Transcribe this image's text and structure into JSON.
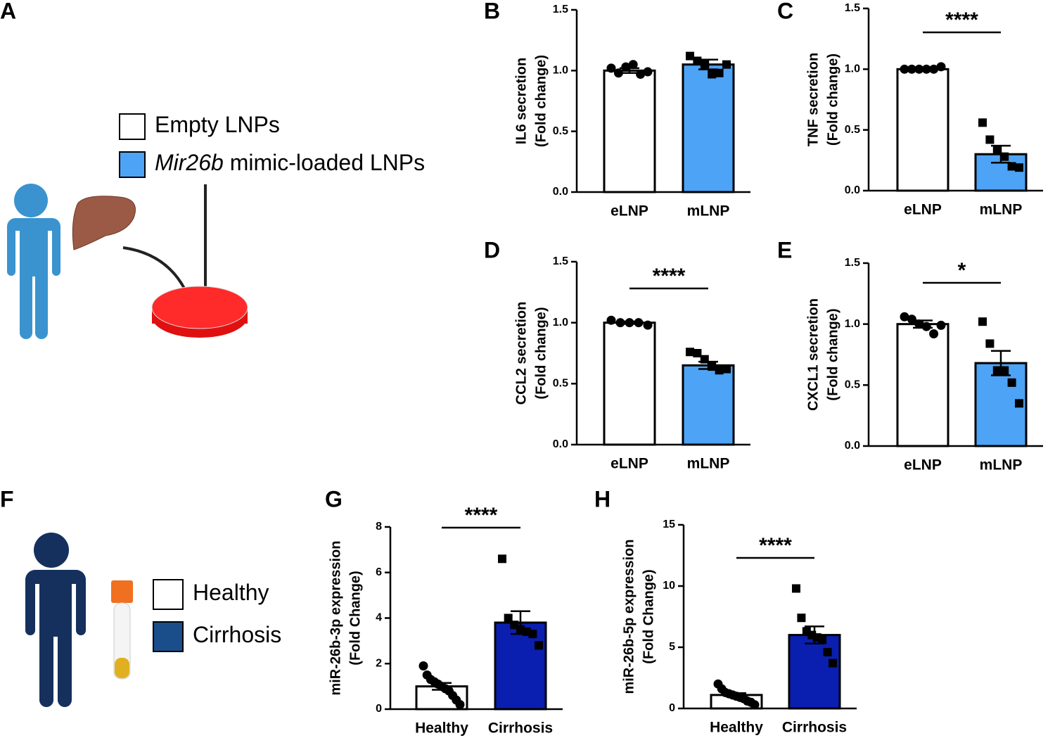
{
  "panel_a": {
    "label": "A",
    "legend": [
      {
        "text": "Empty LNPs",
        "color": "#ffffff"
      },
      {
        "italic": "Mir26b",
        "text": " mimic-loaded LNPs",
        "color": "#4da3f5"
      }
    ]
  },
  "panel_f": {
    "label": "F",
    "legend": [
      {
        "text": "Healthy",
        "color": "#ffffff"
      },
      {
        "text": "Cirrhosis",
        "color": "#1a4e8a"
      }
    ]
  },
  "chart_data": [
    {
      "type": "bar",
      "panel": "B",
      "ylabel": [
        "IL6 secretion",
        "(Fold change)"
      ],
      "categories": [
        "eLNP",
        "mLNP"
      ],
      "colors": [
        "#ffffff",
        "#4da3f5"
      ],
      "markers": [
        "circle",
        "square"
      ],
      "values": [
        1.0,
        1.05
      ],
      "errors": [
        0.02,
        0.04
      ],
      "points": [
        [
          1.02,
          0.98,
          1.03,
          1.05,
          0.97,
          0.99
        ],
        [
          1.12,
          1.08,
          1.05,
          0.97,
          0.98,
          1.05
        ]
      ],
      "ylim": [
        0,
        1.5
      ],
      "yticks": [
        {
          "value": 0,
          "label": "0.0"
        },
        0.5,
        {
          "value": 1,
          "label": "1.0"
        },
        1.5
      ]
    },
    {
      "type": "bar",
      "panel": "C",
      "ylabel": [
        "TNF secretion",
        "(Fold change)"
      ],
      "categories": [
        "eLNP",
        "mLNP"
      ],
      "colors": [
        "#ffffff",
        "#4da3f5"
      ],
      "markers": [
        "circle",
        "square"
      ],
      "values": [
        1.0,
        0.3
      ],
      "errors": [
        0.01,
        0.07
      ],
      "points": [
        [
          1.0,
          1.0,
          1.0,
          1.0,
          1.0,
          1.02
        ],
        [
          0.56,
          0.42,
          0.34,
          0.28,
          0.2,
          0.19
        ]
      ],
      "significance": "****",
      "ylim": [
        0,
        1.5
      ],
      "yticks": [
        {
          "value": 0,
          "label": "0.0"
        },
        0.5,
        {
          "value": 1,
          "label": "1.0"
        },
        1.5
      ]
    },
    {
      "type": "bar",
      "panel": "D",
      "ylabel": [
        "CCL2 secretion",
        "(Fold change)"
      ],
      "categories": [
        "eLNP",
        "mLNP"
      ],
      "colors": [
        "#ffffff",
        "#4da3f5"
      ],
      "markers": [
        "circle",
        "square"
      ],
      "values": [
        1.0,
        0.65
      ],
      "errors": [
        0.01,
        0.03
      ],
      "points": [
        [
          1.02,
          1.0,
          1.0,
          1.0,
          0.98
        ],
        [
          0.76,
          0.75,
          0.7,
          0.64,
          0.61,
          0.62
        ]
      ],
      "significance": "****",
      "ylim": [
        0,
        1.5
      ],
      "yticks": [
        {
          "value": 0,
          "label": "0.0"
        },
        0.5,
        {
          "value": 1,
          "label": "1.0"
        },
        1.5
      ]
    },
    {
      "type": "bar",
      "panel": "E",
      "ylabel": [
        "CXCL1 secretion",
        "(Fold change)"
      ],
      "categories": [
        "eLNP",
        "mLNP"
      ],
      "colors": [
        "#ffffff",
        "#4da3f5"
      ],
      "markers": [
        "circle",
        "square"
      ],
      "values": [
        1.0,
        0.68
      ],
      "errors": [
        0.03,
        0.1
      ],
      "points": [
        [
          1.06,
          1.04,
          1.0,
          0.98,
          0.92,
          0.99
        ],
        [
          1.02,
          0.84,
          0.62,
          0.62,
          0.52,
          0.35
        ]
      ],
      "significance": "*",
      "ylim": [
        0,
        1.5
      ],
      "yticks": [
        {
          "value": 0,
          "label": "0.0"
        },
        0.5,
        {
          "value": 1,
          "label": "1.0"
        },
        1.5
      ]
    },
    {
      "type": "bar",
      "panel": "G",
      "ylabel": [
        "miR-26b-3p expression",
        "(Fold Change)"
      ],
      "categories": [
        "Healthy",
        "Cirrhosis"
      ],
      "colors": [
        "#ffffff",
        "#0a1fb0"
      ],
      "markers": [
        "circle",
        "square"
      ],
      "values": [
        1.0,
        3.8
      ],
      "errors": [
        0.15,
        0.5
      ],
      "points": [
        [
          1.9,
          1.5,
          1.3,
          1.2,
          1.1,
          1.0,
          0.9,
          0.8,
          0.6,
          0.4,
          0.2
        ],
        [
          6.6,
          4.0,
          3.7,
          3.5,
          3.4,
          3.3,
          2.8
        ]
      ],
      "significance": "****",
      "ylim": [
        0,
        8
      ],
      "yticks": [
        0,
        2,
        4,
        6,
        8
      ]
    },
    {
      "type": "bar",
      "panel": "H",
      "ylabel": [
        "miR-26b-5p expression",
        "(Fold Change)"
      ],
      "categories": [
        "Healthy",
        "Cirrhosis"
      ],
      "colors": [
        "#ffffff",
        "#0a1fb0"
      ],
      "markers": [
        "circle",
        "square"
      ],
      "values": [
        1.1,
        6.0
      ],
      "errors": [
        0.15,
        0.7
      ],
      "points": [
        [
          2.0,
          1.6,
          1.3,
          1.2,
          1.1,
          1.0,
          0.9,
          0.8,
          0.6,
          0.5,
          0.3
        ],
        [
          9.8,
          7.4,
          6.3,
          6.0,
          5.8,
          5.6,
          4.6,
          3.7
        ]
      ],
      "significance": "****",
      "ylim": [
        0,
        15
      ],
      "yticks": [
        0,
        5,
        10,
        15
      ]
    }
  ]
}
